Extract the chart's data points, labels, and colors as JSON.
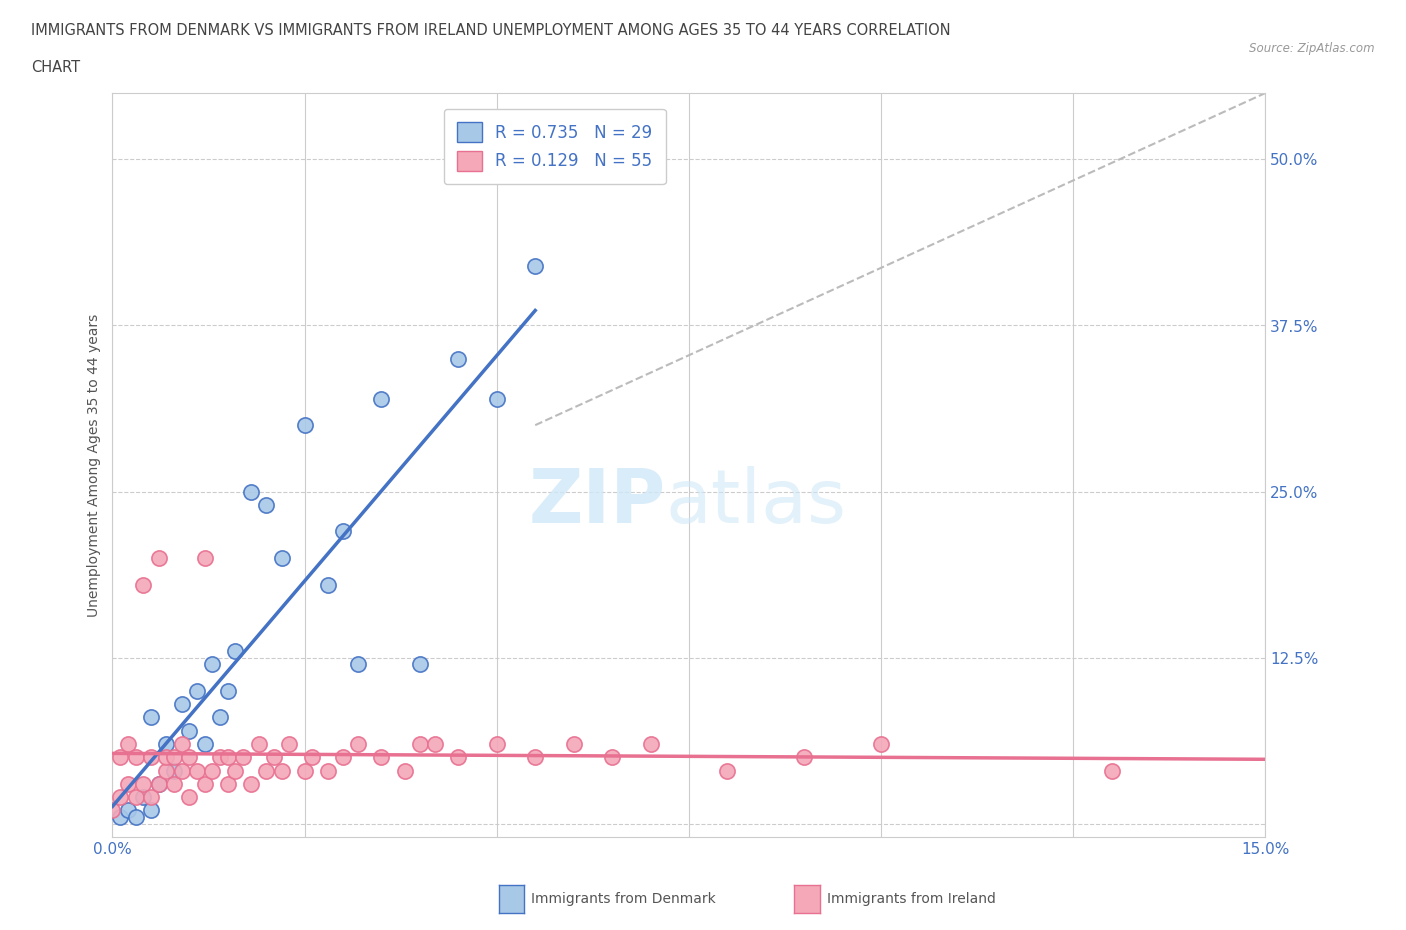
{
  "title_line1": "IMMIGRANTS FROM DENMARK VS IMMIGRANTS FROM IRELAND UNEMPLOYMENT AMONG AGES 35 TO 44 YEARS CORRELATION",
  "title_line2": "CHART",
  "source": "Source: ZipAtlas.com",
  "ylabel": "Unemployment Among Ages 35 to 44 years",
  "xlim": [
    0.0,
    0.15
  ],
  "ylim": [
    -0.01,
    0.55
  ],
  "x_ticks": [
    0.0,
    0.025,
    0.05,
    0.075,
    0.1,
    0.125,
    0.15
  ],
  "y_ticks": [
    0.0,
    0.125,
    0.25,
    0.375,
    0.5
  ],
  "denmark_color": "#a8c8e8",
  "ireland_color": "#f4a8b8",
  "denmark_line_color": "#4472c4",
  "ireland_line_color": "#e87090",
  "watermark_zip": "ZIP",
  "watermark_atlas": "atlas",
  "legend_R_denmark": "0.735",
  "legend_N_denmark": "29",
  "legend_R_ireland": "0.129",
  "legend_N_ireland": "55",
  "denmark_scatter_x": [
    0.001,
    0.002,
    0.003,
    0.004,
    0.005,
    0.005,
    0.006,
    0.007,
    0.008,
    0.009,
    0.01,
    0.011,
    0.012,
    0.013,
    0.014,
    0.015,
    0.016,
    0.018,
    0.02,
    0.022,
    0.025,
    0.028,
    0.03,
    0.032,
    0.035,
    0.04,
    0.045,
    0.05,
    0.055
  ],
  "denmark_scatter_y": [
    0.005,
    0.01,
    0.005,
    0.02,
    0.01,
    0.08,
    0.03,
    0.06,
    0.04,
    0.09,
    0.07,
    0.1,
    0.06,
    0.12,
    0.08,
    0.1,
    0.13,
    0.25,
    0.24,
    0.2,
    0.3,
    0.18,
    0.22,
    0.12,
    0.32,
    0.12,
    0.35,
    0.32,
    0.42
  ],
  "ireland_scatter_x": [
    0.0,
    0.001,
    0.001,
    0.002,
    0.002,
    0.003,
    0.003,
    0.004,
    0.004,
    0.005,
    0.005,
    0.006,
    0.006,
    0.007,
    0.007,
    0.008,
    0.008,
    0.009,
    0.009,
    0.01,
    0.01,
    0.011,
    0.012,
    0.012,
    0.013,
    0.014,
    0.015,
    0.015,
    0.016,
    0.017,
    0.018,
    0.019,
    0.02,
    0.021,
    0.022,
    0.023,
    0.025,
    0.026,
    0.028,
    0.03,
    0.032,
    0.035,
    0.038,
    0.04,
    0.042,
    0.045,
    0.05,
    0.055,
    0.06,
    0.065,
    0.07,
    0.08,
    0.09,
    0.1,
    0.13
  ],
  "ireland_scatter_y": [
    0.01,
    0.02,
    0.05,
    0.03,
    0.06,
    0.02,
    0.05,
    0.03,
    0.18,
    0.02,
    0.05,
    0.03,
    0.2,
    0.04,
    0.05,
    0.03,
    0.05,
    0.04,
    0.06,
    0.02,
    0.05,
    0.04,
    0.03,
    0.2,
    0.04,
    0.05,
    0.03,
    0.05,
    0.04,
    0.05,
    0.03,
    0.06,
    0.04,
    0.05,
    0.04,
    0.06,
    0.04,
    0.05,
    0.04,
    0.05,
    0.06,
    0.05,
    0.04,
    0.06,
    0.06,
    0.05,
    0.06,
    0.05,
    0.06,
    0.05,
    0.06,
    0.04,
    0.05,
    0.06,
    0.04
  ]
}
